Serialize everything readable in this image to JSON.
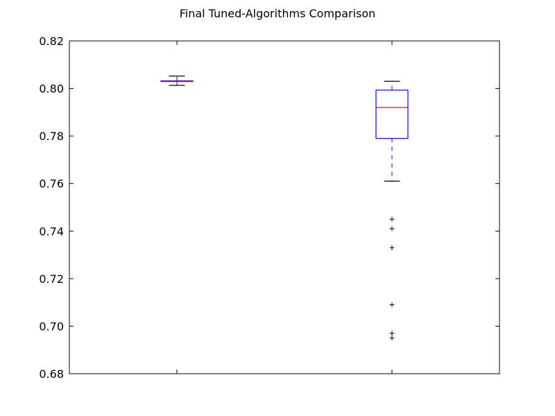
{
  "chart_data": {
    "type": "box",
    "title": "Final Tuned-Algorithms Comparison",
    "xlabel": "",
    "ylabel": "",
    "ylim": [
      0.68,
      0.82
    ],
    "yticks": [
      "0.68",
      "0.70",
      "0.72",
      "0.74",
      "0.76",
      "0.78",
      "0.80",
      "0.82"
    ],
    "xticklabels": [
      "",
      ""
    ],
    "grid": false,
    "boxes": [
      {
        "whisker_low": 0.8013,
        "q1": 0.803,
        "median": 0.803,
        "q3": 0.8032,
        "whisker_high": 0.8052,
        "outliers": []
      },
      {
        "whisker_low": 0.761,
        "q1": 0.779,
        "median": 0.792,
        "q3": 0.7993,
        "whisker_high": 0.803,
        "outliers": [
          0.745,
          0.741,
          0.733,
          0.709,
          0.697,
          0.695
        ]
      }
    ],
    "colors": {
      "box": "#0000ff",
      "median": "#ff0000",
      "cap": "#000000",
      "flier": "#000000",
      "axes": "#000000"
    }
  }
}
